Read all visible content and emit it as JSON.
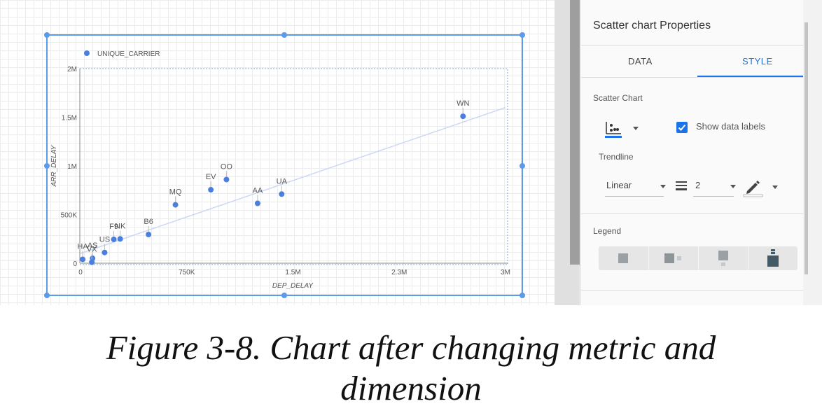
{
  "chart_data": {
    "type": "scatter",
    "legend": {
      "label": "UNIQUE_CARRIER",
      "placement": "top-left"
    },
    "xlabel": "DEP_DELAY",
    "ylabel": "ARR_DELAY",
    "xlim": [
      0,
      3000000
    ],
    "ylim": [
      0,
      2000000
    ],
    "x_ticks": [
      {
        "value": 0,
        "label": "0"
      },
      {
        "value": 750000,
        "label": "750K"
      },
      {
        "value": 1500000,
        "label": "1.5M"
      },
      {
        "value": 2250000,
        "label": "2.3M"
      },
      {
        "value": 3000000,
        "label": "3M"
      }
    ],
    "y_ticks": [
      {
        "value": 0,
        "label": "0"
      },
      {
        "value": 500000,
        "label": "500K"
      },
      {
        "value": 1000000,
        "label": "1M"
      },
      {
        "value": 1500000,
        "label": "1.5M"
      },
      {
        "value": 2000000,
        "label": "2M"
      }
    ],
    "points": [
      {
        "label": "WN",
        "x": 2700000,
        "y": 1510000
      },
      {
        "label": "OO",
        "x": 1030000,
        "y": 860000
      },
      {
        "label": "EV",
        "x": 920000,
        "y": 755000
      },
      {
        "label": "UA",
        "x": 1420000,
        "y": 710000
      },
      {
        "label": "AA",
        "x": 1250000,
        "y": 615000
      },
      {
        "label": "MQ",
        "x": 670000,
        "y": 600000
      },
      {
        "label": "B6",
        "x": 480000,
        "y": 295000
      },
      {
        "label": "NK",
        "x": 280000,
        "y": 250000
      },
      {
        "label": "F9",
        "x": 235000,
        "y": 245000
      },
      {
        "label": "US",
        "x": 170000,
        "y": 110000
      },
      {
        "label": "AS",
        "x": 85000,
        "y": 50000
      },
      {
        "label": "HA",
        "x": 15000,
        "y": 40000
      },
      {
        "label": "VX",
        "x": 80000,
        "y": 10000
      }
    ],
    "trendline": {
      "type": "linear",
      "from": [
        0,
        100000
      ],
      "to": [
        3000000,
        1600000
      ]
    },
    "point_color": "#4a7fe0",
    "trend_color": "#c8d8f4",
    "grid": true
  },
  "panel": {
    "title": "Scatter chart Properties",
    "tabs": [
      {
        "label": "DATA",
        "active": false
      },
      {
        "label": "STYLE",
        "active": true
      }
    ],
    "scatter_chart_label": "Scatter Chart",
    "show_labels": {
      "label": "Show data labels",
      "checked": true
    },
    "trendline": {
      "label": "Trendline",
      "type": "Linear",
      "width": "2"
    },
    "legend_label": "Legend",
    "accent_color": "#1a73e8"
  },
  "caption": {
    "line1": "Figure 3-8. Chart after changing metric and",
    "line2": "dimension"
  }
}
